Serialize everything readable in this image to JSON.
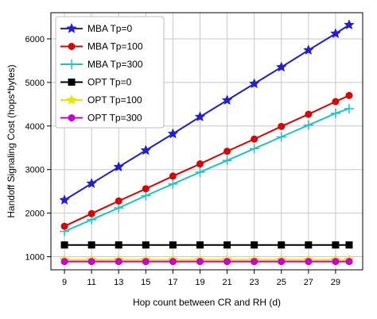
{
  "chart_data": {
    "type": "line",
    "xlabel": "Hop count between CR and RH (d)",
    "ylabel": "Handoff Signaling Cost (hops*bytes)",
    "x": [
      9,
      11,
      13,
      15,
      17,
      19,
      21,
      23,
      25,
      27,
      29
    ],
    "xticks": [
      "9",
      "11",
      "13",
      "15",
      "17",
      "19",
      "21",
      "23",
      "25",
      "27",
      "29"
    ],
    "yticks": [
      "1000",
      "2000",
      "3000",
      "4000",
      "5000",
      "6000"
    ],
    "xlim": [
      8,
      31
    ],
    "ylim": [
      700,
      6600
    ],
    "grid": true,
    "legend": "top-left",
    "series": [
      {
        "name": "MBA Tp=0",
        "color": "#1f1fd6",
        "marker": "star",
        "x": [
          9,
          11,
          13,
          15,
          17,
          19,
          21,
          23,
          25,
          27,
          29,
          30
        ],
        "values": [
          2300,
          2680,
          3060,
          3440,
          3820,
          4210,
          4590,
          4970,
          5350,
          5740,
          6120,
          6320
        ]
      },
      {
        "name": "MBA Tp=100",
        "color": "#e00000",
        "marker": "circle",
        "x": [
          9,
          11,
          13,
          15,
          17,
          19,
          21,
          23,
          25,
          27,
          29,
          30
        ],
        "values": [
          1700,
          1990,
          2280,
          2560,
          2850,
          3130,
          3420,
          3700,
          3990,
          4270,
          4560,
          4700
        ]
      },
      {
        "name": "MBA Tp=300",
        "color": "#19c6c6",
        "marker": "plus",
        "x": [
          9,
          11,
          13,
          15,
          17,
          19,
          21,
          23,
          25,
          27,
          29,
          30
        ],
        "values": [
          1580,
          1850,
          2120,
          2400,
          2670,
          2940,
          3210,
          3480,
          3750,
          4020,
          4290,
          4400
        ]
      },
      {
        "name": "OPT Tp=0",
        "color": "#000000",
        "marker": "square",
        "x": [
          9,
          11,
          13,
          15,
          17,
          19,
          21,
          23,
          25,
          27,
          29,
          30
        ],
        "values": [
          1270,
          1270,
          1270,
          1270,
          1270,
          1270,
          1270,
          1270,
          1270,
          1270,
          1270,
          1270
        ]
      },
      {
        "name": "OPT Tp=100",
        "color": "#e6e600",
        "marker": "star",
        "x": [
          9,
          11,
          13,
          15,
          17,
          19,
          21,
          23,
          25,
          27,
          29,
          30
        ],
        "values": [
          930,
          930,
          930,
          930,
          930,
          930,
          930,
          930,
          930,
          930,
          930,
          930
        ]
      },
      {
        "name": "OPT Tp=300",
        "color": "#cc00cc",
        "marker": "circle",
        "x": [
          9,
          11,
          13,
          15,
          17,
          19,
          21,
          23,
          25,
          27,
          29,
          30
        ],
        "values": [
          890,
          890,
          890,
          890,
          890,
          890,
          890,
          890,
          890,
          890,
          890,
          890
        ]
      }
    ]
  }
}
